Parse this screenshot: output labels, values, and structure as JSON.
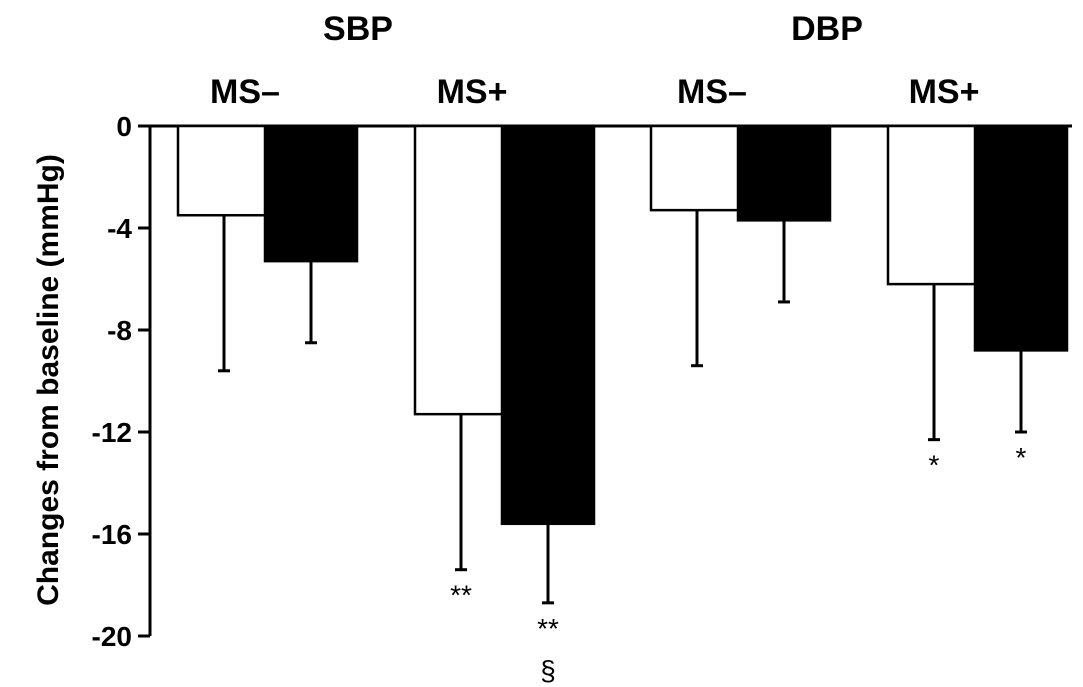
{
  "chart_data": {
    "type": "bar",
    "ylabel": "Changes from baseline (mmHg)",
    "ylim": [
      -20,
      0
    ],
    "yticks": [
      0,
      -4,
      -8,
      -12,
      -16,
      -20
    ],
    "group_headers": [
      "SBP",
      "DBP"
    ],
    "subgroups": [
      "MS–",
      "MS+",
      "MS–",
      "MS+"
    ],
    "bars": [
      {
        "group": "SBP",
        "subgroup": "MS–",
        "fill": "#ffffff",
        "value": -3.5,
        "err_low": -9.6,
        "marks": []
      },
      {
        "group": "SBP",
        "subgroup": "MS–",
        "fill": "#000000",
        "value": -5.3,
        "err_low": -8.5,
        "marks": []
      },
      {
        "group": "SBP",
        "subgroup": "MS+",
        "fill": "#ffffff",
        "value": -11.3,
        "err_low": -17.4,
        "marks": [
          "**"
        ]
      },
      {
        "group": "SBP",
        "subgroup": "MS+",
        "fill": "#000000",
        "value": -15.6,
        "err_low": -18.7,
        "marks": [
          "**",
          "§"
        ]
      },
      {
        "group": "DBP",
        "subgroup": "MS–",
        "fill": "#ffffff",
        "value": -3.3,
        "err_low": -9.4,
        "marks": []
      },
      {
        "group": "DBP",
        "subgroup": "MS–",
        "fill": "#000000",
        "value": -3.7,
        "err_low": -6.9,
        "marks": []
      },
      {
        "group": "DBP",
        "subgroup": "MS+",
        "fill": "#ffffff",
        "value": -6.2,
        "err_low": -12.3,
        "marks": [
          "*"
        ]
      },
      {
        "group": "DBP",
        "subgroup": "MS+",
        "fill": "#000000",
        "value": -8.8,
        "err_low": -12.0,
        "marks": [
          "*"
        ]
      }
    ]
  }
}
